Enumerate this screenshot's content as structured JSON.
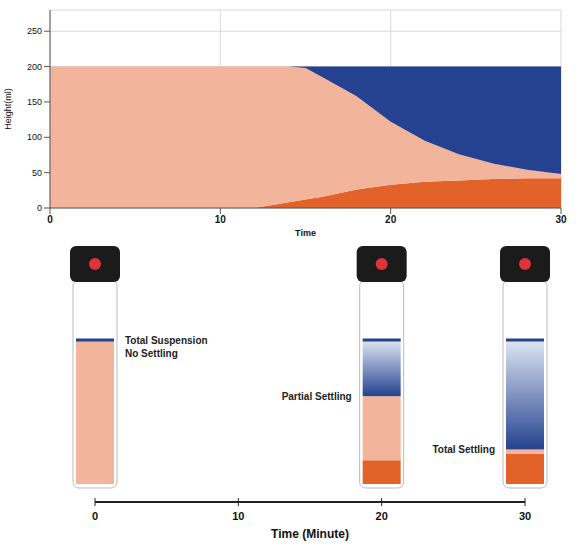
{
  "chart_data": {
    "type": "area",
    "x_label": "Time",
    "y_label": "Height(ml)",
    "x": [
      0,
      10,
      12,
      14,
      15,
      16,
      18,
      20,
      22,
      24,
      26,
      28,
      30
    ],
    "series": [
      {
        "color": "#e2622a",
        "values": [
          0,
          0,
          0,
          8,
          12,
          16,
          26,
          33,
          37,
          39,
          41,
          42,
          42
        ]
      },
      {
        "color": "#f2b49a",
        "values": [
          200,
          200,
          200,
          192,
          186,
          169,
          132,
          89,
          58,
          37,
          22,
          12,
          6
        ]
      },
      {
        "color": "#24428f",
        "values": [
          0,
          0,
          0,
          0,
          2,
          15,
          42,
          78,
          105,
          124,
          137,
          146,
          152
        ]
      }
    ],
    "stacked": true,
    "xlim": [
      0,
      30
    ],
    "xticks": [
      0,
      10,
      20,
      30
    ],
    "ylim": [
      0,
      280
    ],
    "yticks": [
      0,
      50,
      100,
      150,
      200,
      250
    ],
    "grid": true
  },
  "diagram": {
    "x_label": "Time (Minute)",
    "time_lim": [
      0,
      30
    ],
    "time_ticks": [
      0,
      10,
      20,
      30
    ],
    "vials": [
      {
        "time": 0,
        "label": [
          "Total Suspension",
          "No Settling"
        ]
      },
      {
        "time": 20,
        "label": [
          "Partial Settling"
        ]
      },
      {
        "time": 30,
        "label": [
          "Total Settling"
        ]
      }
    ]
  }
}
